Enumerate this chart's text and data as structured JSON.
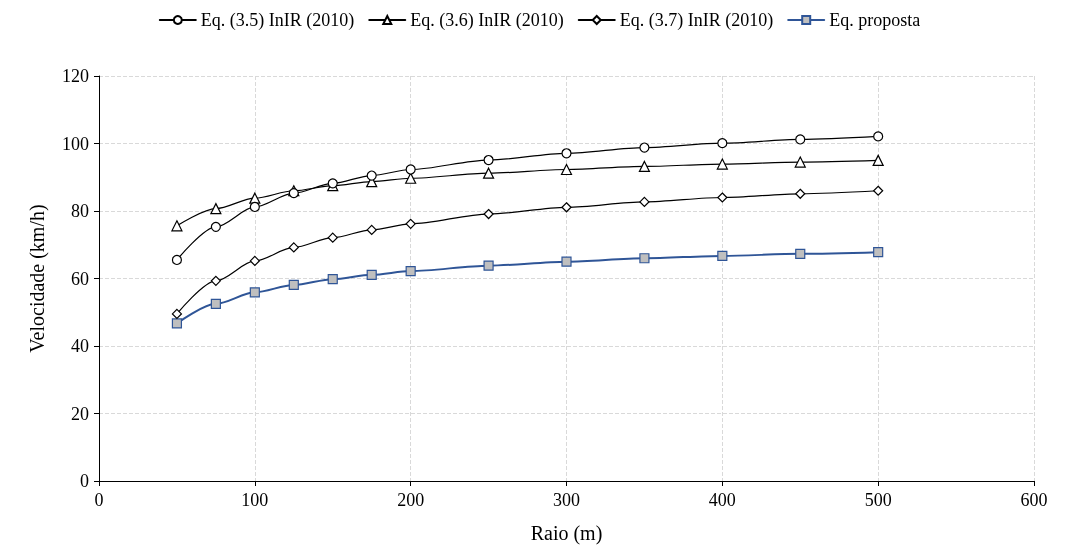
{
  "chart_data": {
    "type": "line",
    "xlabel": "Raio (m)",
    "ylabel": "Velocidade (km/h)",
    "x": [
      50,
      75,
      100,
      125,
      150,
      175,
      200,
      250,
      300,
      350,
      400,
      450,
      500
    ],
    "series": [
      {
        "name": "Eq. (3.5) InIR (2010)",
        "color": "#000000",
        "marker": "circle",
        "values": [
          65.5,
          75.3,
          81.2,
          85.3,
          88.2,
          90.5,
          92.3,
          95.1,
          97.1,
          98.8,
          100.1,
          101.2,
          102.1
        ]
      },
      {
        "name": "Eq. (3.6) InIR (2010)",
        "color": "#000000",
        "marker": "triangle",
        "values": [
          75.6,
          80.7,
          83.8,
          86.0,
          87.5,
          88.7,
          89.7,
          91.2,
          92.3,
          93.2,
          93.9,
          94.5,
          95.0
        ]
      },
      {
        "name": "Eq. (3.7) InIR (2010)",
        "color": "#000000",
        "marker": "diamond",
        "values": [
          49.5,
          59.3,
          65.2,
          69.2,
          72.1,
          74.4,
          76.2,
          79.1,
          81.1,
          82.7,
          84.0,
          85.1,
          86.0
        ]
      },
      {
        "name": "Eq. proposta",
        "color": "#2f5597",
        "marker": "square",
        "values": [
          46.7,
          52.5,
          55.9,
          58.1,
          59.8,
          61.1,
          62.2,
          63.8,
          65.0,
          66.0,
          66.7,
          67.3,
          67.8
        ]
      }
    ],
    "xlim": [
      0,
      600
    ],
    "xticks": [
      0,
      100,
      200,
      300,
      400,
      500,
      600
    ],
    "ylim": [
      0,
      120
    ],
    "yticks": [
      0,
      20,
      40,
      60,
      80,
      100,
      120
    ],
    "grid": true,
    "legend": "top",
    "line_style": "solid"
  }
}
